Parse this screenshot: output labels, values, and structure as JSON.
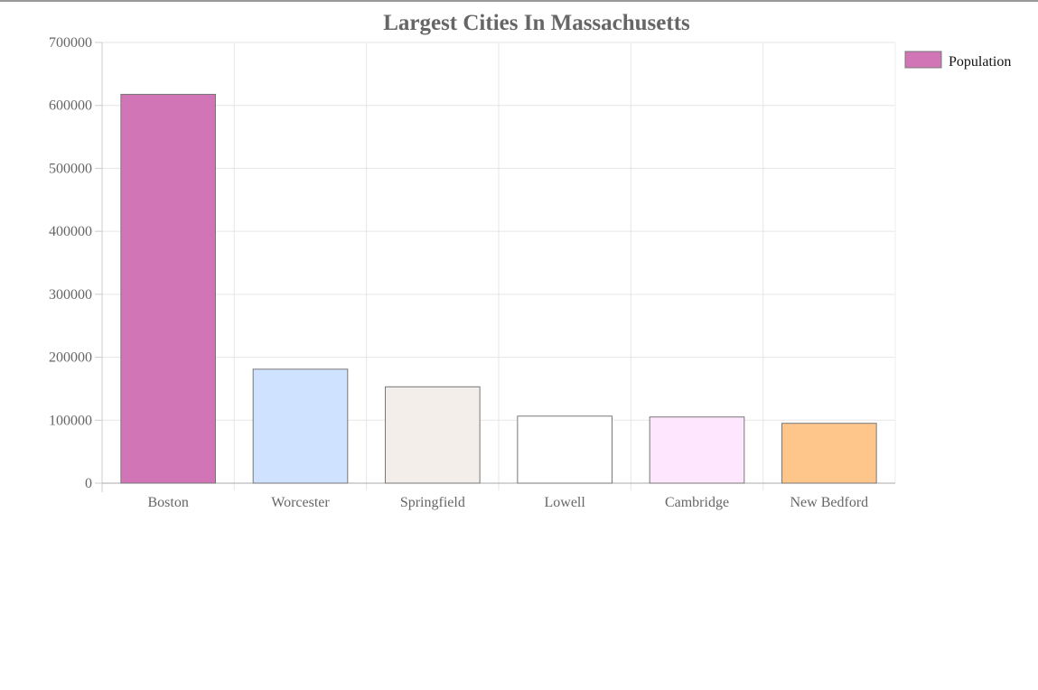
{
  "chart_data": {
    "type": "bar",
    "title": "Largest Cities In Massachusetts",
    "categories": [
      "Boston",
      "Worcester",
      "Springfield",
      "Lowell",
      "Cambridge",
      "New Bedford"
    ],
    "series": [
      {
        "name": "Population",
        "values": [
          617594,
          181045,
          153060,
          106519,
          105162,
          95072
        ]
      }
    ],
    "bar_colors": [
      "#d175b7",
      "#cfe2ff",
      "#f3eeea",
      "#ffffff",
      "#fee6ff",
      "#ffc68c"
    ],
    "bar_border_color": "#777777",
    "legend_color": "#d175b7",
    "ylim": [
      0,
      700000
    ],
    "y_ticks": [
      0,
      100000,
      200000,
      300000,
      400000,
      500000,
      600000,
      700000
    ],
    "xlabel": "",
    "ylabel": "",
    "grid": true,
    "legend_position": "right"
  }
}
